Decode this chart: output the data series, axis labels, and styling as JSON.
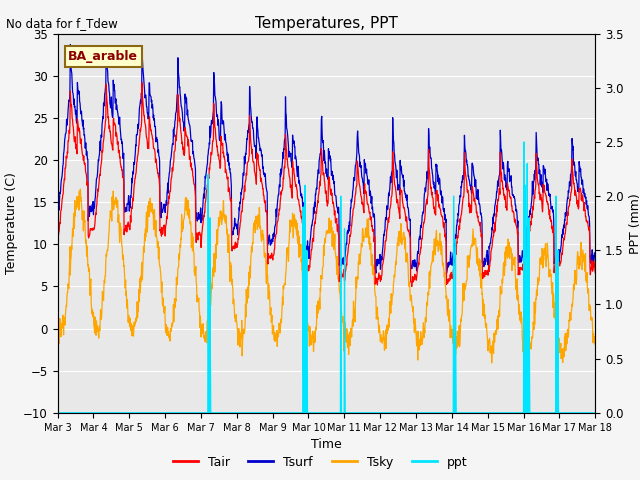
{
  "title": "Temperatures, PPT",
  "no_data_text": "No data for f_Tdew",
  "annotation_text": "BA_arable",
  "xlabel": "Time",
  "ylabel_left": "Temperature (C)",
  "ylabel_right": "PPT (mm)",
  "ylim_left": [
    -10,
    35
  ],
  "ylim_right": [
    0.0,
    3.5
  ],
  "yticks_left": [
    -10,
    -5,
    0,
    5,
    10,
    15,
    20,
    25,
    30,
    35
  ],
  "yticks_right": [
    0.0,
    0.5,
    1.0,
    1.5,
    2.0,
    2.5,
    3.0,
    3.5
  ],
  "xtick_labels": [
    "Mar 3",
    "Mar 4",
    "Mar 5",
    "Mar 6",
    "Mar 7",
    "Mar 8",
    "Mar 9",
    "Mar 10",
    "Mar 11",
    "Mar 12",
    "Mar 13",
    "Mar 14",
    "Mar 15",
    "Mar 16",
    "Mar 17",
    "Mar 18"
  ],
  "tair_color": "#ff0000",
  "tsurf_color": "#0000cc",
  "tsky_color": "#ffa500",
  "ppt_color": "#00e5ff",
  "fig_facecolor": "#f5f5f5",
  "plot_facecolor": "#e8e8e8",
  "n_days": 15,
  "pts_per_day": 96
}
